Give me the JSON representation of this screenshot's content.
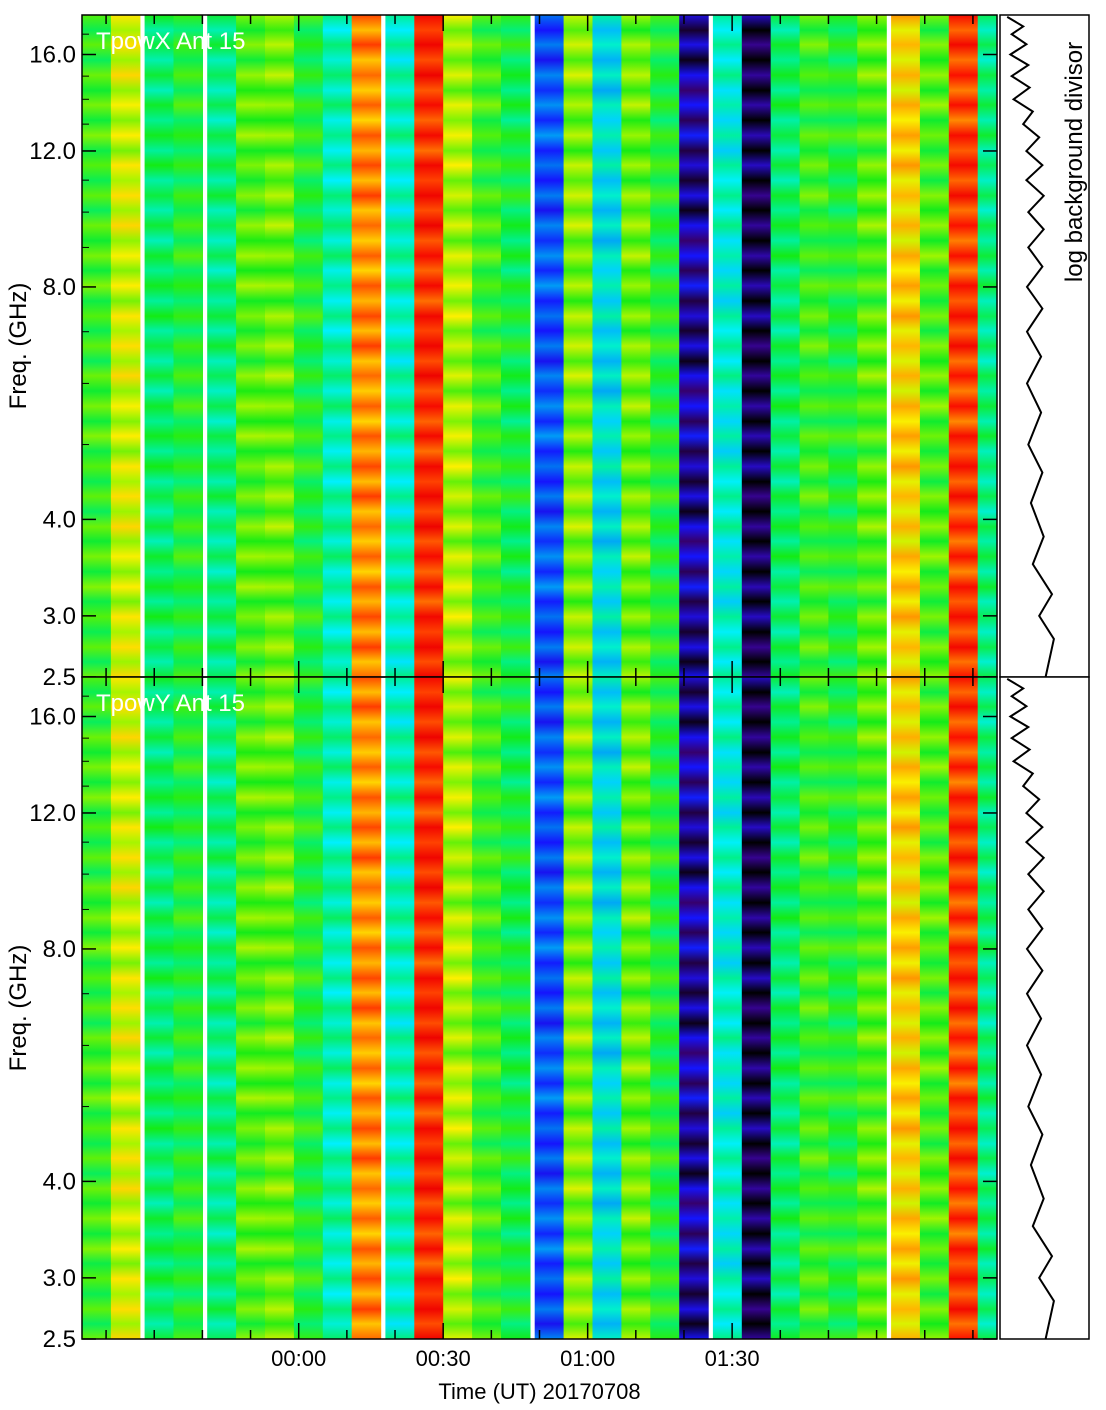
{
  "chart_data": [
    {
      "type": "heatmap",
      "panel_label": "TpowX Ant 15",
      "ylabel": "Freq. (GHz)",
      "y_tick_labels": [
        "2.5",
        "3.0",
        "4.0",
        "8.0",
        "12.0",
        "16.0"
      ],
      "y_ticks": [
        2.5,
        3.0,
        4.0,
        8.0,
        12.0,
        16.0
      ],
      "ylim": [
        2.5,
        18.0
      ],
      "x_range_minutes": [
        -45,
        145
      ],
      "column_times_minutes": [
        -42,
        -36,
        -29,
        -23,
        -16,
        -10,
        -4,
        2,
        8,
        14,
        21,
        27,
        33,
        39,
        45,
        52,
        58,
        64,
        70,
        76,
        82,
        89,
        95,
        101,
        107,
        113,
        119,
        126,
        132,
        138,
        144
      ],
      "column_levels": [
        0.55,
        0.68,
        0.47,
        0.52,
        0.45,
        0.58,
        0.6,
        0.52,
        0.41,
        0.82,
        0.4,
        0.92,
        0.65,
        0.55,
        0.5,
        0.2,
        0.62,
        0.35,
        0.6,
        0.52,
        0.08,
        0.38,
        0.03,
        0.47,
        0.55,
        0.52,
        0.58,
        0.75,
        0.57,
        0.9,
        0.45
      ],
      "colormap": "rainbow",
      "side_panel_label": "log background divisor",
      "divisor_profile": [
        [
          17.9,
          0.05
        ],
        [
          17.4,
          0.3
        ],
        [
          17.0,
          0.12
        ],
        [
          16.5,
          0.35
        ],
        [
          16.0,
          0.1
        ],
        [
          15.5,
          0.38
        ],
        [
          15.0,
          0.12
        ],
        [
          14.5,
          0.4
        ],
        [
          14.0,
          0.15
        ],
        [
          13.5,
          0.45
        ],
        [
          13.0,
          0.3
        ],
        [
          12.5,
          0.55
        ],
        [
          12.0,
          0.35
        ],
        [
          11.5,
          0.6
        ],
        [
          11.0,
          0.35
        ],
        [
          10.5,
          0.62
        ],
        [
          10.0,
          0.38
        ],
        [
          9.5,
          0.62
        ],
        [
          9.0,
          0.38
        ],
        [
          8.5,
          0.6
        ],
        [
          8.0,
          0.36
        ],
        [
          7.5,
          0.6
        ],
        [
          7.0,
          0.36
        ],
        [
          6.5,
          0.58
        ],
        [
          6.0,
          0.36
        ],
        [
          5.5,
          0.58
        ],
        [
          5.0,
          0.38
        ],
        [
          4.6,
          0.6
        ],
        [
          4.2,
          0.42
        ],
        [
          3.8,
          0.62
        ],
        [
          3.5,
          0.45
        ],
        [
          3.2,
          0.75
        ],
        [
          3.0,
          0.55
        ],
        [
          2.8,
          0.78
        ],
        [
          2.5,
          0.65
        ]
      ]
    },
    {
      "type": "heatmap",
      "panel_label": "TpowY Ant 15",
      "ylabel": "Freq. (GHz)",
      "y_tick_labels": [
        "2.5",
        "3.0",
        "4.0",
        "8.0",
        "12.0",
        "16.0"
      ],
      "y_ticks": [
        2.5,
        3.0,
        4.0,
        8.0,
        12.0,
        16.0
      ],
      "ylim": [
        2.5,
        18.0
      ],
      "x_range_minutes": [
        -45,
        145
      ],
      "column_times_minutes": [
        -42,
        -36,
        -29,
        -23,
        -16,
        -10,
        -4,
        2,
        8,
        14,
        21,
        27,
        33,
        39,
        45,
        52,
        58,
        64,
        70,
        76,
        82,
        89,
        95,
        101,
        107,
        113,
        119,
        126,
        132,
        138,
        144
      ],
      "column_levels": [
        0.55,
        0.68,
        0.47,
        0.52,
        0.45,
        0.58,
        0.6,
        0.52,
        0.41,
        0.82,
        0.4,
        0.92,
        0.65,
        0.55,
        0.5,
        0.2,
        0.62,
        0.35,
        0.6,
        0.52,
        0.08,
        0.38,
        0.03,
        0.47,
        0.55,
        0.52,
        0.58,
        0.75,
        0.57,
        0.9,
        0.45
      ],
      "colormap": "rainbow",
      "divisor_profile": [
        [
          17.9,
          0.05
        ],
        [
          17.4,
          0.3
        ],
        [
          17.0,
          0.12
        ],
        [
          16.5,
          0.35
        ],
        [
          16.0,
          0.1
        ],
        [
          15.5,
          0.38
        ],
        [
          15.0,
          0.12
        ],
        [
          14.5,
          0.4
        ],
        [
          14.0,
          0.15
        ],
        [
          13.5,
          0.45
        ],
        [
          13.0,
          0.3
        ],
        [
          12.5,
          0.55
        ],
        [
          12.0,
          0.35
        ],
        [
          11.5,
          0.6
        ],
        [
          11.0,
          0.35
        ],
        [
          10.5,
          0.62
        ],
        [
          10.0,
          0.38
        ],
        [
          9.5,
          0.62
        ],
        [
          9.0,
          0.38
        ],
        [
          8.5,
          0.6
        ],
        [
          8.0,
          0.36
        ],
        [
          7.5,
          0.6
        ],
        [
          7.0,
          0.36
        ],
        [
          6.5,
          0.58
        ],
        [
          6.0,
          0.36
        ],
        [
          5.5,
          0.58
        ],
        [
          5.0,
          0.38
        ],
        [
          4.6,
          0.6
        ],
        [
          4.2,
          0.42
        ],
        [
          3.8,
          0.62
        ],
        [
          3.5,
          0.45
        ],
        [
          3.2,
          0.75
        ],
        [
          3.0,
          0.55
        ],
        [
          2.8,
          0.78
        ],
        [
          2.5,
          0.65
        ]
      ]
    }
  ],
  "x_axis": {
    "tick_labels": [
      "00:00",
      "00:30",
      "01:00",
      "01:30"
    ],
    "tick_minutes": [
      0,
      30,
      60,
      90
    ],
    "xlabel": "Time (UT) 20170708"
  }
}
